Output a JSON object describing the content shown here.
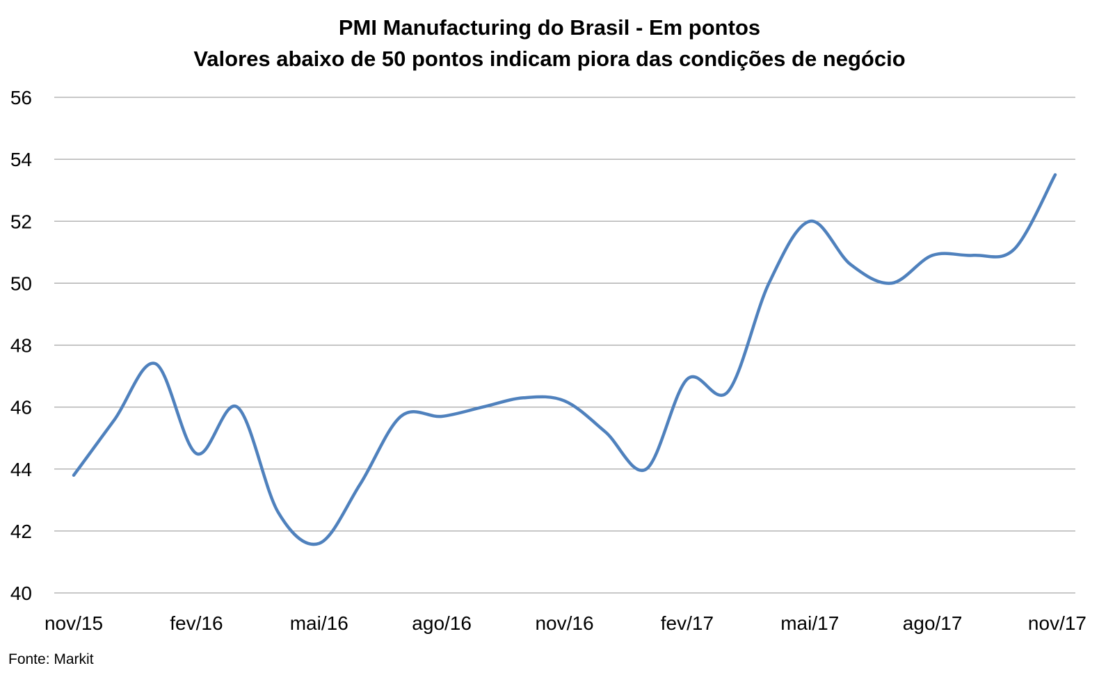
{
  "chart_data": {
    "type": "line",
    "title": "PMI Manufacturing do Brasil - Em pontos",
    "subtitle": "Valores abaixo de 50 pontos indicam piora das condições de negócio",
    "source": "Fonte: Markit",
    "ylim": [
      40,
      56
    ],
    "yticks": [
      40,
      42,
      44,
      46,
      48,
      50,
      52,
      54,
      56
    ],
    "x_tick_labels": [
      "nov/15",
      "fev/16",
      "mai/16",
      "ago/16",
      "nov/16",
      "fev/17",
      "mai/17",
      "ago/17",
      "nov/17"
    ],
    "x_tick_indices": [
      0,
      3,
      6,
      9,
      12,
      15,
      18,
      21,
      24
    ],
    "grid": true,
    "legend": "none",
    "series": [
      {
        "color": "#4f81bd",
        "values": [
          43.8,
          45.6,
          47.4,
          44.5,
          46.0,
          42.6,
          41.6,
          43.5,
          45.7,
          45.7,
          46.0,
          46.3,
          46.2,
          45.2,
          44.0,
          46.9,
          46.5,
          50.0,
          52.0,
          50.6,
          50.0,
          50.9,
          50.9,
          51.1,
          53.5
        ]
      }
    ]
  }
}
